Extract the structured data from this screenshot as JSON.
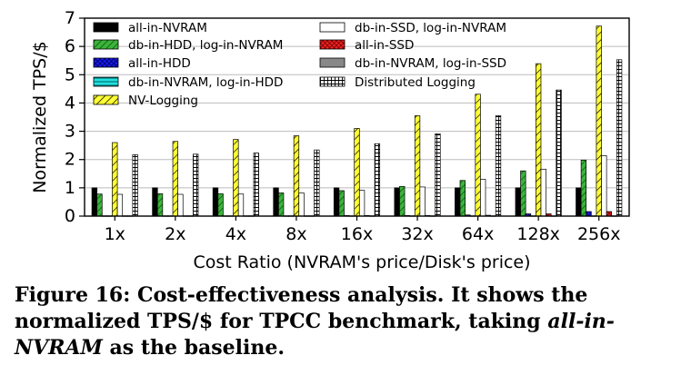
{
  "chart_data": {
    "type": "bar",
    "xlabel": "Cost Ratio (NVRAM's price/Disk's price)",
    "ylabel": "Normalized TPS/$",
    "ylim": [
      0,
      7
    ],
    "yticks": [
      0,
      1,
      2,
      3,
      4,
      5,
      6,
      7
    ],
    "grid": "horizontal",
    "legend_position": "top, inside, two columns",
    "categories": [
      "1x",
      "2x",
      "4x",
      "8x",
      "16x",
      "32x",
      "64x",
      "128x",
      "256x"
    ],
    "series": [
      {
        "name": "all-in-NVRAM",
        "pattern": "solid-black",
        "color": "#000000",
        "values": [
          1,
          1,
          1,
          1,
          1,
          1,
          1,
          1,
          1
        ]
      },
      {
        "name": "db-in-HDD, log-in-NVRAM",
        "pattern": "green-diagonal",
        "color": "#3cb43c",
        "values": [
          0.78,
          0.79,
          0.79,
          0.82,
          0.9,
          1.05,
          1.26,
          1.6,
          1.98
        ]
      },
      {
        "name": "all-in-HDD",
        "pattern": "blue-crosshatch",
        "color": "#1a1aee",
        "values": [
          0.01,
          0.01,
          0.01,
          0.01,
          0.02,
          0.02,
          0.04,
          0.08,
          0.16
        ]
      },
      {
        "name": "db-in-NVRAM, log-in-HDD",
        "pattern": "cyan-horizontal",
        "color": "#22e0e0",
        "values": [
          0.01,
          0.01,
          0.01,
          0.01,
          0.01,
          0.01,
          0.01,
          0.01,
          0.01
        ]
      },
      {
        "name": "NV-Logging",
        "pattern": "yellow-diagonal",
        "color": "#ffff33",
        "values": [
          2.6,
          2.64,
          2.71,
          2.84,
          3.1,
          3.55,
          4.31,
          5.39,
          6.72
        ]
      },
      {
        "name": "db-in-SSD, log-in-NVRAM",
        "pattern": "white",
        "color": "#ffffff",
        "values": [
          0.77,
          0.77,
          0.78,
          0.82,
          0.91,
          1.03,
          1.3,
          1.66,
          2.14
        ]
      },
      {
        "name": "all-in-SSD",
        "pattern": "red-cross",
        "color": "#ee2222",
        "values": [
          0.01,
          0.01,
          0.01,
          0.01,
          0.02,
          0.02,
          0.03,
          0.08,
          0.16
        ]
      },
      {
        "name": "db-in-NVRAM, log-in-SSD",
        "pattern": "gray",
        "color": "#888888",
        "values": [
          0.01,
          0.01,
          0.01,
          0.01,
          0.01,
          0.01,
          0.01,
          0.01,
          0.01
        ]
      },
      {
        "name": "Distributed Logging",
        "pattern": "grid",
        "color": "#ffffff",
        "values": [
          2.17,
          2.19,
          2.23,
          2.34,
          2.56,
          2.91,
          3.55,
          4.46,
          5.53
        ]
      }
    ],
    "legend_order": [
      0,
      5,
      1,
      6,
      2,
      7,
      3,
      8,
      4
    ]
  },
  "caption": {
    "figure_label": "Figure 16: Cost-effectiveness analysis. It shows the normalized TPS/$ for TPCC benchmark, taking ",
    "baseline": "all-in-NVRAM",
    "ending": " as the baseline."
  }
}
